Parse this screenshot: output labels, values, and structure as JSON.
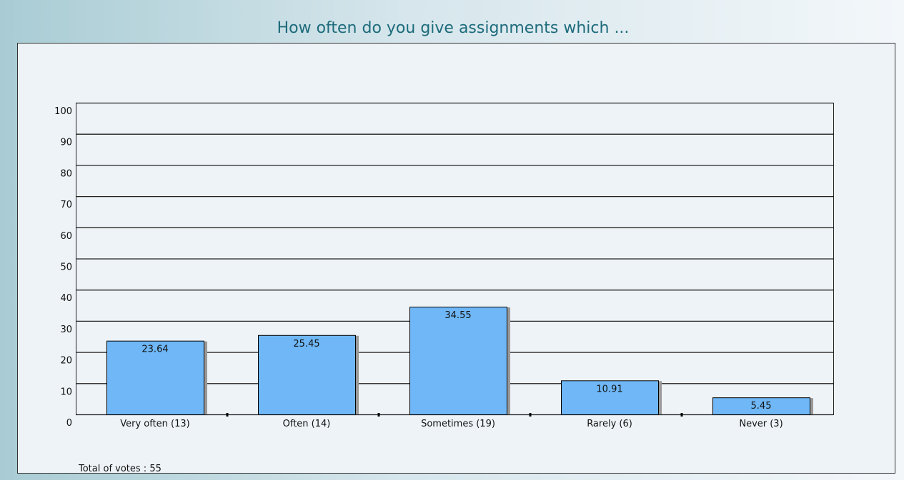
{
  "chart_data": {
    "type": "bar",
    "title": "How often do you give assignments which ...",
    "categories": [
      "Very often (13)",
      "Often (14)",
      "Sometimes (19)",
      "Rarely (6)",
      "Never (3)"
    ],
    "values": [
      23.64,
      25.45,
      34.55,
      10.91,
      5.45
    ],
    "color": "#6fb7f6",
    "ylim": [
      0,
      100
    ],
    "yticks": [
      0,
      10,
      20,
      30,
      40,
      50,
      60,
      70,
      80,
      90,
      100
    ],
    "grid": true,
    "footer": "Total of votes : 55"
  }
}
